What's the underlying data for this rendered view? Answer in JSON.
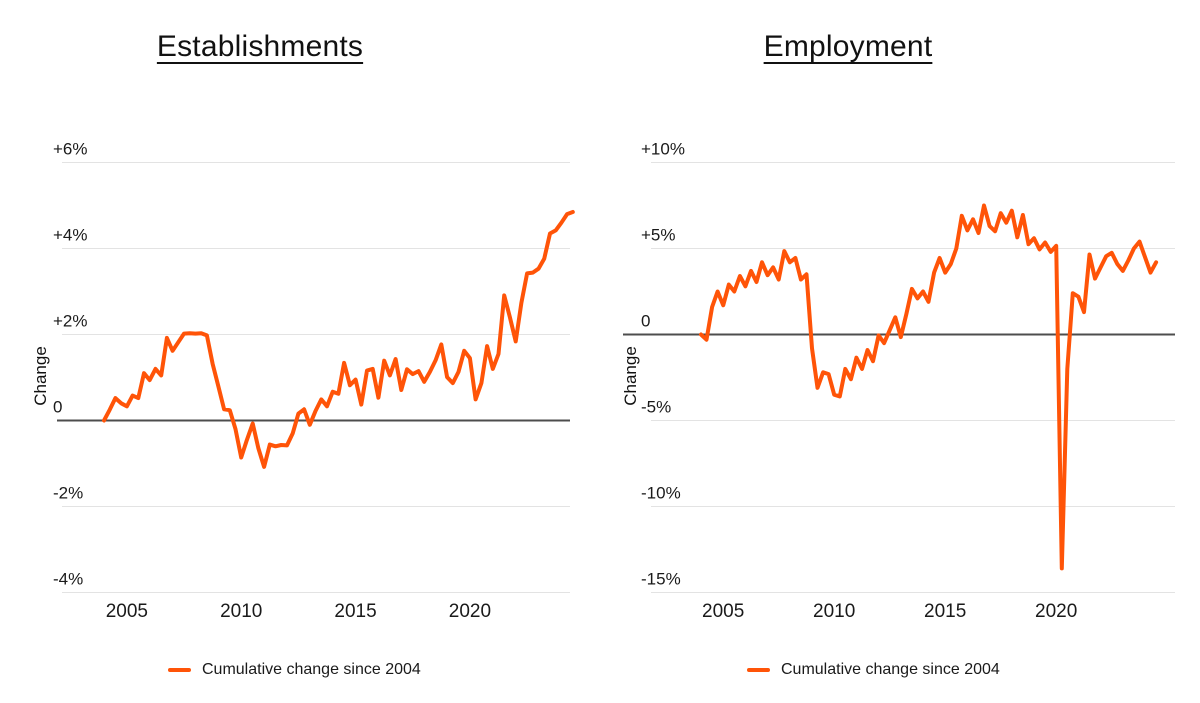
{
  "page": {
    "background": "#ffffff"
  },
  "chart_data": [
    {
      "type": "line",
      "title": "Establishments",
      "ylabel": "Change",
      "legend": [
        {
          "label": "Cumulative change since 2004"
        }
      ],
      "color": "#ff5408",
      "grid": "horizontal-only",
      "legend_position": "bottom",
      "x_range": [
        2004,
        2024.5
      ],
      "x_ticks": [
        {
          "label": "2005",
          "value": 2005
        },
        {
          "label": "2010",
          "value": 2010
        },
        {
          "label": "2015",
          "value": 2015
        },
        {
          "label": "2020",
          "value": 2020
        }
      ],
      "y_ticks": [
        {
          "label": "+6%",
          "value": 6
        },
        {
          "label": "+4%",
          "value": 4
        },
        {
          "label": "+2%",
          "value": 2
        },
        {
          "label": "0",
          "value": 0
        },
        {
          "label": "-2%",
          "value": -2
        },
        {
          "label": "-4%",
          "value": -4
        }
      ],
      "series": [
        {
          "name": "Cumulative change since 2004",
          "x_start": 2004.0,
          "x_step": 0.25,
          "unit": "percent",
          "values": [
            0.0,
            0.25,
            0.52,
            0.4,
            0.33,
            0.58,
            0.52,
            1.1,
            0.94,
            1.2,
            1.05,
            1.92,
            1.62,
            1.82,
            2.02,
            2.03,
            2.02,
            2.03,
            1.98,
            1.32,
            0.79,
            0.26,
            0.24,
            -0.2,
            -0.86,
            -0.45,
            -0.07,
            -0.65,
            -1.08,
            -0.56,
            -0.6,
            -0.57,
            -0.58,
            -0.3,
            0.16,
            0.26,
            -0.1,
            0.22,
            0.49,
            0.33,
            0.67,
            0.62,
            1.34,
            0.82,
            0.95,
            0.37,
            1.16,
            1.2,
            0.53,
            1.39,
            1.05,
            1.43,
            0.71,
            1.19,
            1.08,
            1.15,
            0.9,
            1.13,
            1.4,
            1.77,
            1.01,
            0.87,
            1.13,
            1.62,
            1.45,
            0.49,
            0.87,
            1.73,
            1.2,
            1.55,
            2.91,
            2.4,
            1.84,
            2.74,
            3.42,
            3.44,
            3.53,
            3.76,
            4.35,
            4.42,
            4.6,
            4.8,
            4.85
          ]
        }
      ]
    },
    {
      "type": "line",
      "title": "Employment",
      "ylabel": "Change",
      "legend": [
        {
          "label": "Cumulative change since 2004"
        }
      ],
      "color": "#ff5408",
      "grid": "horizontal-only",
      "legend_position": "bottom",
      "x_range": [
        2004,
        2024.5
      ],
      "x_ticks": [
        {
          "label": "2005",
          "value": 2005
        },
        {
          "label": "2010",
          "value": 2010
        },
        {
          "label": "2015",
          "value": 2015
        },
        {
          "label": "2020",
          "value": 2020
        }
      ],
      "y_ticks": [
        {
          "label": "+10%",
          "value": 10
        },
        {
          "label": "+5%",
          "value": 5
        },
        {
          "label": "0",
          "value": 0
        },
        {
          "label": "-5%",
          "value": -5
        },
        {
          "label": "-10%",
          "value": -10
        },
        {
          "label": "-15%",
          "value": -15
        }
      ],
      "series": [
        {
          "name": "Cumulative change since 2004",
          "x_start": 2004.0,
          "x_step": 0.25,
          "unit": "percent",
          "values": [
            0.0,
            -0.3,
            1.6,
            2.5,
            1.7,
            2.9,
            2.5,
            3.4,
            2.8,
            3.7,
            3.05,
            4.2,
            3.45,
            3.9,
            3.2,
            4.85,
            4.2,
            4.45,
            3.2,
            3.5,
            -0.8,
            -3.1,
            -2.2,
            -2.3,
            -3.5,
            -3.6,
            -2.0,
            -2.6,
            -1.35,
            -2.0,
            -0.9,
            -1.55,
            -0.05,
            -0.5,
            0.25,
            1.0,
            -0.15,
            1.2,
            2.65,
            2.1,
            2.5,
            1.9,
            3.6,
            4.45,
            3.6,
            4.1,
            5.0,
            6.9,
            6.05,
            6.7,
            5.9,
            7.5,
            6.3,
            6.0,
            7.05,
            6.5,
            7.2,
            5.65,
            6.95,
            5.25,
            5.6,
            4.95,
            5.35,
            4.8,
            5.15,
            -13.6,
            -2.0,
            2.4,
            2.2,
            1.3,
            4.65,
            3.25,
            3.9,
            4.55,
            4.75,
            4.1,
            3.7,
            4.3,
            5.0,
            5.4,
            4.5,
            3.6,
            4.2
          ]
        }
      ]
    }
  ]
}
